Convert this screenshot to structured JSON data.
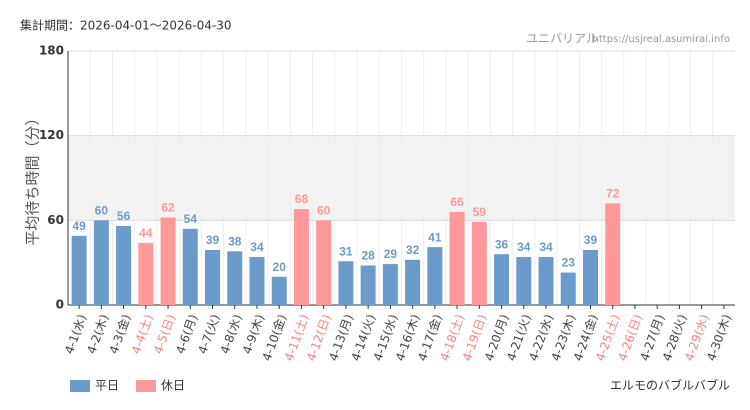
{
  "chart_data": {
    "type": "bar",
    "period": "集計期間：2026-04-01〜2026-04-30",
    "source_name": "ユニバリアル",
    "source_url": "https://usjreal.asumirai.info",
    "title": "エルモのバブルバブル",
    "y_label": "平均待ち時間（分）",
    "categories": [
      "4-1(水)",
      "4-2(木)",
      "4-3(金)",
      "4-4(土)",
      "4-5(日)",
      "4-6(月)",
      "4-7(火)",
      "4-8(水)",
      "4-9(木)",
      "4-10(金)",
      "4-11(土)",
      "4-12(日)",
      "4-13(月)",
      "4-14(火)",
      "4-15(水)",
      "4-16(木)",
      "4-17(金)",
      "4-18(土)",
      "4-19(日)",
      "4-20(月)",
      "4-21(火)",
      "4-22(水)",
      "4-23(木)",
      "4-24(金)",
      "4-25(土)",
      "4-26(日)",
      "4-27(月)",
      "4-28(火)",
      "4-29(水)",
      "4-30(木)"
    ],
    "category_label_colors": [
      "#444",
      "#444",
      "#444",
      "#ff8080",
      "#ff8080",
      "#444",
      "#444",
      "#444",
      "#444",
      "#444",
      "#ff8080",
      "#ff8080",
      "#444",
      "#444",
      "#444",
      "#444",
      "#444",
      "#ff8080",
      "#ff8080",
      "#444",
      "#444",
      "#444",
      "#444",
      "#444",
      "#ff8080",
      "#ff8080",
      "#444",
      "#444",
      "#ff8080",
      "#444"
    ],
    "series": [
      {
        "name": "平日",
        "color": "#6b9bcb",
        "values": [
          49,
          60,
          56,
          null,
          null,
          54,
          39,
          38,
          34,
          20,
          null,
          null,
          31,
          28,
          29,
          32,
          41,
          null,
          null,
          36,
          34,
          34,
          23,
          39,
          null,
          null,
          null,
          null,
          null,
          null
        ]
      },
      {
        "name": "休日",
        "color": "#ff9999",
        "values": [
          null,
          null,
          null,
          44,
          62,
          null,
          null,
          null,
          null,
          null,
          68,
          60,
          null,
          null,
          null,
          null,
          null,
          66,
          59,
          null,
          null,
          null,
          null,
          null,
          72,
          null,
          null,
          null,
          null,
          null
        ]
      }
    ],
    "ylim": [
      0,
      180
    ],
    "yticks": [
      0,
      60,
      120,
      180
    ],
    "shaded_band": [
      60,
      120
    ],
    "grid": true
  }
}
